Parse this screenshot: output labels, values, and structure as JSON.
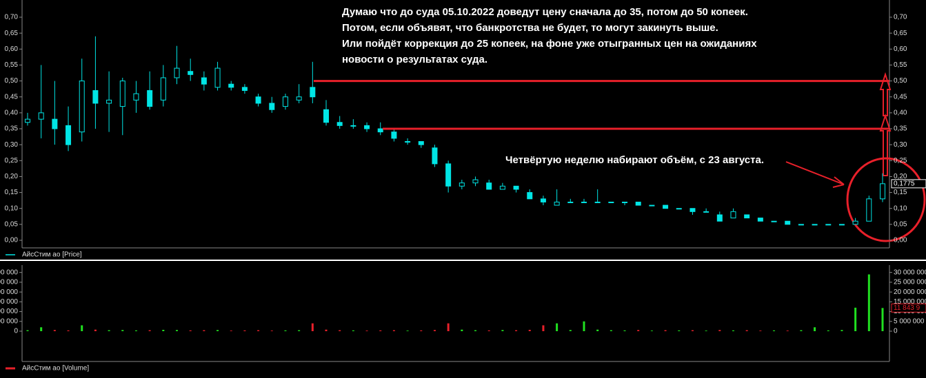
{
  "chart_data": [
    {
      "type": "candlestick",
      "series": [
        {
          "name": "АйсСтим ао [Price]",
          "color": "#00e5e5",
          "open": [
            0.37,
            0.38,
            0.38,
            0.36,
            0.34,
            0.47,
            0.43,
            0.42,
            0.44,
            0.47,
            0.44,
            0.51,
            0.53,
            0.51,
            0.48,
            0.49,
            0.48,
            0.45,
            0.43,
            0.42,
            0.44,
            0.48,
            0.41,
            0.37,
            0.36,
            0.36,
            0.35,
            0.34,
            0.31,
            0.31,
            0.29,
            0.24,
            0.17,
            0.18,
            0.18,
            0.16,
            0.17,
            0.15,
            0.13,
            0.11,
            0.12,
            0.12,
            0.12,
            0.12,
            0.12,
            0.12,
            0.11,
            0.11,
            0.1,
            0.1,
            0.09,
            0.08,
            0.07,
            0.08,
            0.07,
            0.06,
            0.06,
            0.05,
            0.05,
            0.05,
            0.05,
            0.05,
            0.06,
            0.13
          ],
          "high": [
            0.4,
            0.55,
            0.5,
            0.42,
            0.57,
            0.64,
            0.53,
            0.51,
            0.5,
            0.53,
            0.55,
            0.61,
            0.57,
            0.53,
            0.56,
            0.5,
            0.49,
            0.46,
            0.45,
            0.46,
            0.49,
            0.56,
            0.44,
            0.39,
            0.38,
            0.37,
            0.37,
            0.35,
            0.32,
            0.31,
            0.3,
            0.25,
            0.19,
            0.2,
            0.19,
            0.18,
            0.17,
            0.16,
            0.14,
            0.16,
            0.13,
            0.13,
            0.16,
            0.12,
            0.12,
            0.12,
            0.11,
            0.11,
            0.1,
            0.1,
            0.1,
            0.09,
            0.1,
            0.08,
            0.07,
            0.06,
            0.06,
            0.05,
            0.05,
            0.05,
            0.05,
            0.07,
            0.14,
            0.21
          ],
          "low": [
            0.36,
            0.32,
            0.3,
            0.28,
            0.31,
            0.35,
            0.34,
            0.33,
            0.4,
            0.41,
            0.42,
            0.49,
            0.5,
            0.47,
            0.47,
            0.47,
            0.46,
            0.42,
            0.4,
            0.41,
            0.43,
            0.43,
            0.36,
            0.35,
            0.35,
            0.34,
            0.33,
            0.31,
            0.3,
            0.29,
            0.23,
            0.15,
            0.16,
            0.17,
            0.16,
            0.16,
            0.15,
            0.13,
            0.11,
            0.11,
            0.12,
            0.12,
            0.12,
            0.12,
            0.11,
            0.11,
            0.11,
            0.1,
            0.1,
            0.08,
            0.09,
            0.06,
            0.07,
            0.07,
            0.06,
            0.06,
            0.05,
            0.05,
            0.05,
            0.05,
            0.05,
            0.05,
            0.06,
            0.12
          ],
          "close": [
            0.38,
            0.4,
            0.35,
            0.3,
            0.5,
            0.43,
            0.44,
            0.5,
            0.46,
            0.42,
            0.51,
            0.54,
            0.52,
            0.49,
            0.54,
            0.48,
            0.47,
            0.43,
            0.41,
            0.45,
            0.45,
            0.45,
            0.37,
            0.36,
            0.36,
            0.35,
            0.34,
            0.32,
            0.31,
            0.3,
            0.24,
            0.17,
            0.18,
            0.19,
            0.16,
            0.17,
            0.16,
            0.13,
            0.12,
            0.12,
            0.12,
            0.12,
            0.12,
            0.12,
            0.12,
            0.11,
            0.11,
            0.1,
            0.1,
            0.09,
            0.09,
            0.06,
            0.09,
            0.07,
            0.06,
            0.06,
            0.05,
            0.05,
            0.05,
            0.05,
            0.05,
            0.06,
            0.13,
            0.1775
          ]
        }
      ],
      "ylim": [
        0,
        0.7
      ],
      "yticks": [
        {
          "value": 0,
          "label": "0,00"
        },
        {
          "value": 0.05,
          "label": "0,05"
        },
        {
          "value": 0.1,
          "label": "0,10"
        },
        {
          "value": 0.15,
          "label": "0,15"
        },
        {
          "value": 0.2,
          "label": "0,20"
        },
        {
          "value": 0.25,
          "label": "0,25"
        },
        {
          "value": 0.3,
          "label": "0,30"
        },
        {
          "value": 0.35,
          "label": "0,35"
        },
        {
          "value": 0.4,
          "label": "0,40"
        },
        {
          "value": 0.45,
          "label": "0,45"
        },
        {
          "value": 0.5,
          "label": "0,50"
        },
        {
          "value": 0.55,
          "label": "0,55"
        },
        {
          "value": 0.6,
          "label": "0,60"
        },
        {
          "value": 0.65,
          "label": "0,65"
        },
        {
          "value": 0.7,
          "label": "0,70"
        }
      ],
      "last_label": {
        "value": 0.1775,
        "label": "0,1775"
      },
      "levels": [
        0.5,
        0.35
      ],
      "level_color": "#e8202a",
      "annotations": [
        "Думаю что до суда 05.10.2022 доведут цену сначала до 35, потом до 50 копеек.",
        "Потом, если объявят, что банкротства не будет,  то могут закинуть выше.",
        "Или пойдёт коррекция до 25 копеек, на фоне уже отыгранных цен на ожиданиях",
        "новости о результатах суда.",
        "Четвёртую неделю набирают объём, с 23 августа."
      ]
    },
    {
      "type": "volume",
      "series": [
        {
          "name": "АйсСтим ао [Volume]",
          "color": "#e8202a",
          "values": [
            500000,
            2000000,
            600000,
            400000,
            3000000,
            800000,
            500000,
            600000,
            400000,
            500000,
            700000,
            600000,
            400000,
            500000,
            600000,
            300000,
            400000,
            500000,
            300000,
            400000,
            500000,
            4000000,
            800000,
            500000,
            400000,
            300000,
            400000,
            500000,
            300000,
            400000,
            600000,
            4000000,
            800000,
            500000,
            400000,
            600000,
            500000,
            700000,
            3000000,
            4000000,
            600000,
            5000000,
            800000,
            500000,
            400000,
            600000,
            300000,
            500000,
            400000,
            500000,
            300000,
            600000,
            400000,
            500000,
            300000,
            400000,
            300000,
            500000,
            2000000,
            400000,
            600000,
            12000000,
            29000000,
            11843900
          ]
        }
      ],
      "up_color": "#20e020",
      "down_color": "#e8202a",
      "ylim": [
        0,
        32000000
      ],
      "yticks": [
        {
          "value": 0,
          "label": "0"
        },
        {
          "value": 5000000,
          "label": "5 000 000"
        },
        {
          "value": 10000000,
          "label": "10 000 000"
        },
        {
          "value": 15000000,
          "label": "15 000 000"
        },
        {
          "value": 20000000,
          "label": "20 000 000"
        },
        {
          "value": 25000000,
          "label": "25 000 000"
        },
        {
          "value": 30000000,
          "label": "30 000 000"
        }
      ],
      "last_label": {
        "value": 11843900,
        "label": "11 843 9"
      }
    }
  ]
}
